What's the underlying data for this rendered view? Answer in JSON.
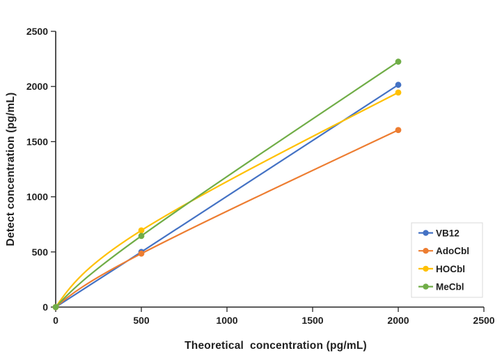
{
  "chart_data": {
    "type": "line",
    "line_style": "smooth",
    "markers": true,
    "grid": false,
    "x": [
      0,
      500,
      2000
    ],
    "series": [
      {
        "name": "VB12",
        "color": "#4472C4",
        "values": [
          0,
          500,
          2015
        ]
      },
      {
        "name": "AdoCbl",
        "color": "#ED7D31",
        "values": [
          0,
          485,
          1605
        ]
      },
      {
        "name": "HOCbl",
        "color": "#FFC000",
        "values": [
          0,
          695,
          1945
        ]
      },
      {
        "name": "MeCbl",
        "color": "#70AD47",
        "values": [
          0,
          645,
          2225
        ]
      }
    ],
    "xlabel": "Theoretical  concentration (pg/mL)",
    "ylabel": "Detect concentration (pg/mL)",
    "xlim": [
      0,
      2500
    ],
    "ylim": [
      0,
      2500
    ],
    "x_ticks": [
      0,
      500,
      1000,
      1500,
      2000,
      2500
    ],
    "y_ticks": [
      0,
      500,
      1000,
      1500,
      2000,
      2500
    ],
    "legend_position": "right-middle",
    "axis_color": "#262626",
    "text_color": "#1f1f1f",
    "legend_border_color": "#d9d9d9"
  }
}
